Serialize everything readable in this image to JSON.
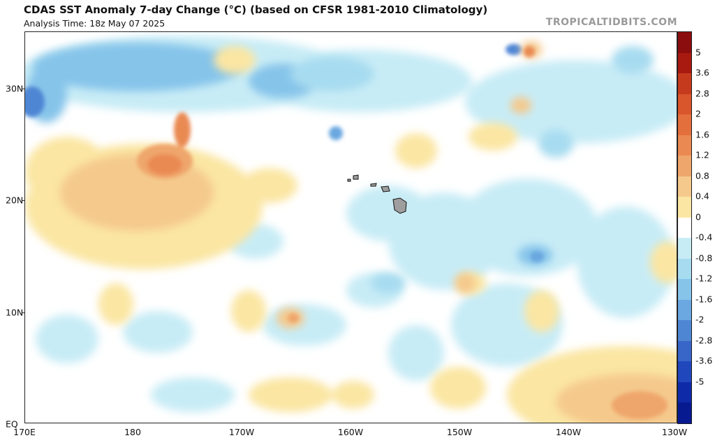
{
  "header": {
    "title": "CDAS SST Anomaly 7-day Change (°C) (based on CFSR 1981-2010 Climatology)",
    "analysis_time": "Analysis Time: 18z May 07 2025",
    "brand": "TROPICALTIDBITS.COM"
  },
  "map": {
    "region": "Central Pacific",
    "lat_ticks": [
      "30N",
      "20N",
      "10N",
      "EQ"
    ],
    "lon_ticks": [
      "170E",
      "180",
      "170W",
      "160W",
      "150W",
      "140W",
      "130W"
    ]
  },
  "colorbar": {
    "labels": [
      "5",
      "3.6",
      "2.8",
      "2",
      "1.6",
      "1.2",
      "0.8",
      "0.4",
      "0",
      "-0.4",
      "-0.8",
      "-1.2",
      "-1.6",
      "-2",
      "-2.8",
      "-3.6",
      "-5"
    ],
    "colors": [
      "#8b0d0d",
      "#a81a10",
      "#c53a1d",
      "#d9552c",
      "#e36f3c",
      "#ea8a52",
      "#efa66c",
      "#f5c98c",
      "#fbe6a3",
      "#ffffff",
      "#c8ecf6",
      "#a7dcf0",
      "#86c4ea",
      "#6ba7e0",
      "#4f86d4",
      "#3766c8",
      "#2047bb",
      "#0f2aa9",
      "#081a90"
    ]
  },
  "features": {
    "warm_anomalies": "red/orange patches",
    "cool_anomalies": "blue patches",
    "land": "Hawaiian Islands"
  }
}
